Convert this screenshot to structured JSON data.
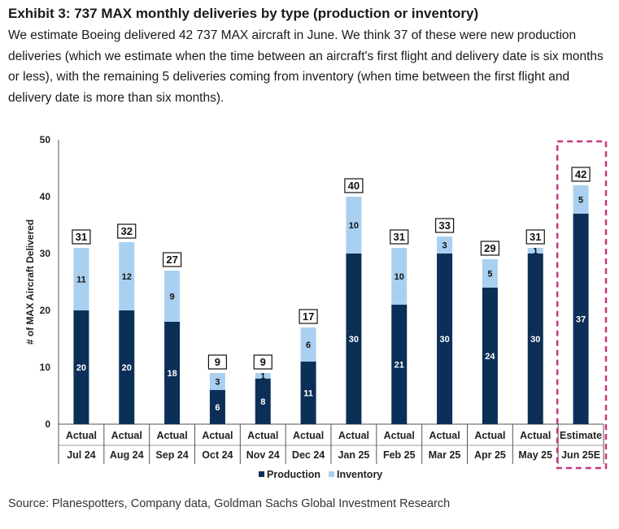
{
  "header": {
    "title": "Exhibit 3: 737 MAX monthly deliveries by type (production or inventory)",
    "description": "We estimate Boeing delivered 42 737 MAX aircraft in June. We think 37 of these were new production deliveries (which we estimate when the time between an aircraft's first flight and delivery date is six months or less), with the remaining 5 deliveries coming from inventory (when time between the first flight and delivery date is more than six months)."
  },
  "footer": {
    "source": "Source: Planespotters, Company data, Goldman Sachs Global Investment Research"
  },
  "chart_data": {
    "type": "bar",
    "stacked": true,
    "ylabel": "# of MAX Aircraft Delivered",
    "ylim": [
      0,
      50
    ],
    "yticks": [
      0,
      10,
      20,
      30,
      40,
      50
    ],
    "grid": false,
    "legend_position": "bottom",
    "categories": [
      {
        "status": "Actual",
        "month": "Jul 24"
      },
      {
        "status": "Actual",
        "month": "Aug 24"
      },
      {
        "status": "Actual",
        "month": "Sep 24"
      },
      {
        "status": "Actual",
        "month": "Oct 24"
      },
      {
        "status": "Actual",
        "month": "Nov 24"
      },
      {
        "status": "Actual",
        "month": "Dec 24"
      },
      {
        "status": "Actual",
        "month": "Jan 25"
      },
      {
        "status": "Actual",
        "month": "Feb 25"
      },
      {
        "status": "Actual",
        "month": "Mar 25"
      },
      {
        "status": "Actual",
        "month": "Apr 25"
      },
      {
        "status": "Actual",
        "month": "May 25"
      },
      {
        "status": "Estimate",
        "month": "Jun 25E"
      }
    ],
    "series": [
      {
        "name": "Production",
        "color": "#0b2f57",
        "label_color": "#ffffff",
        "values": [
          20,
          20,
          18,
          6,
          8,
          11,
          30,
          21,
          30,
          24,
          30,
          37
        ]
      },
      {
        "name": "Inventory",
        "color": "#a9d0f0",
        "label_color": "#111111",
        "values": [
          11,
          12,
          9,
          3,
          1,
          6,
          10,
          10,
          3,
          5,
          1,
          5
        ]
      }
    ],
    "totals": [
      31,
      32,
      27,
      9,
      9,
      17,
      40,
      31,
      33,
      29,
      31,
      42
    ],
    "highlight_category_index": 11,
    "highlight_color": "#c8357f"
  }
}
